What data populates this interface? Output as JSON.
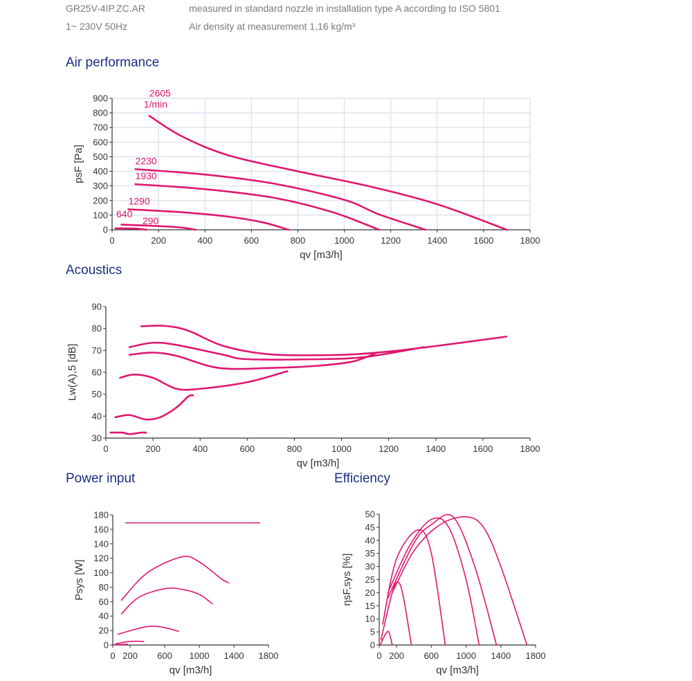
{
  "header": {
    "model": "GR25V-4IP.ZC.AR",
    "supply": "1~ 230V 50Hz",
    "measurement": "measured in standard nozzle in installation type A according to ISO 5801",
    "density": "Air density at measurement 1,16 kg/m³"
  },
  "sections": {
    "air": "Air performance",
    "acoustics": "Acoustics",
    "power": "Power input",
    "efficiency": "Efficiency"
  },
  "colors": {
    "curve": "#e0166f",
    "title": "#1a2f80",
    "grid": "#dce5ef",
    "text": "#333333"
  },
  "chart_data": [
    {
      "id": "air",
      "type": "line",
      "xlabel": "qv [m3/h]",
      "ylabel": "psF [Pa]",
      "xlim": [
        0,
        1800
      ],
      "ylim": [
        0,
        900
      ],
      "grid": true,
      "xticks": [
        0,
        200,
        400,
        600,
        800,
        1000,
        1200,
        1400,
        1600,
        1800
      ],
      "yticks": [
        0,
        100,
        200,
        300,
        400,
        500,
        600,
        700,
        800,
        900
      ],
      "unit_label": "1/min",
      "series": [
        {
          "name": "2605",
          "points": [
            [
              160,
              780
            ],
            [
              300,
              640
            ],
            [
              500,
              510
            ],
            [
              800,
              400
            ],
            [
              1100,
              300
            ],
            [
              1400,
              175
            ],
            [
              1700,
              0
            ]
          ]
        },
        {
          "name": "2230",
          "points": [
            [
              100,
              415
            ],
            [
              400,
              378
            ],
            [
              700,
              315
            ],
            [
              1000,
              205
            ],
            [
              1150,
              105
            ],
            [
              1350,
              0
            ]
          ]
        },
        {
          "name": "1930",
          "points": [
            [
              100,
              312
            ],
            [
              400,
              278
            ],
            [
              700,
              218
            ],
            [
              950,
              120
            ],
            [
              1150,
              0
            ]
          ]
        },
        {
          "name": "1290",
          "points": [
            [
              70,
              140
            ],
            [
              300,
              120
            ],
            [
              500,
              90
            ],
            [
              650,
              50
            ],
            [
              760,
              0
            ]
          ]
        },
        {
          "name": "640",
          "points": [
            [
              40,
              35
            ],
            [
              200,
              25
            ],
            [
              300,
              15
            ],
            [
              360,
              0
            ]
          ]
        },
        {
          "name": "290",
          "points": [
            [
              15,
              10
            ],
            [
              100,
              8
            ],
            [
              150,
              0
            ]
          ]
        }
      ]
    },
    {
      "id": "acoustics",
      "type": "line",
      "xlabel": "qv [m3/h]",
      "ylabel": "Lw(A),5 [dB]",
      "xlim": [
        0,
        1800
      ],
      "ylim": [
        30,
        90
      ],
      "grid": false,
      "xticks": [
        0,
        200,
        400,
        600,
        800,
        1000,
        1200,
        1400,
        1600,
        1800
      ],
      "yticks": [
        30,
        40,
        50,
        60,
        70,
        80,
        90
      ],
      "series": [
        {
          "name": "2605",
          "points": [
            [
              150,
              81
            ],
            [
              250,
              81.2
            ],
            [
              350,
              79
            ],
            [
              500,
              72
            ],
            [
              700,
              68.2
            ],
            [
              1000,
              68
            ],
            [
              1200,
              69.5
            ],
            [
              1400,
              72
            ],
            [
              1700,
              76.3
            ]
          ]
        },
        {
          "name": "2230",
          "points": [
            [
              100,
              71.5
            ],
            [
              200,
              73.5
            ],
            [
              300,
              72.5
            ],
            [
              500,
              68
            ],
            [
              600,
              66
            ],
            [
              900,
              66
            ],
            [
              1100,
              67
            ],
            [
              1350,
              71.5
            ]
          ]
        },
        {
          "name": "1930",
          "points": [
            [
              100,
              68
            ],
            [
              200,
              69
            ],
            [
              300,
              67.5
            ],
            [
              480,
              62
            ],
            [
              700,
              62
            ],
            [
              900,
              63
            ],
            [
              1050,
              65
            ],
            [
              1150,
              69
            ]
          ]
        },
        {
          "name": "1290",
          "points": [
            [
              60,
              57.5
            ],
            [
              120,
              59
            ],
            [
              200,
              57.5
            ],
            [
              300,
              52.5
            ],
            [
              400,
              52.5
            ],
            [
              600,
              55.5
            ],
            [
              770,
              60.5
            ]
          ]
        },
        {
          "name": "640",
          "points": [
            [
              40,
              39.5
            ],
            [
              100,
              40.5
            ],
            [
              170,
              38.5
            ],
            [
              230,
              39.5
            ],
            [
              300,
              44
            ],
            [
              350,
              49
            ],
            [
              370,
              49.5
            ]
          ]
        },
        {
          "name": "290",
          "points": [
            [
              20,
              32.5
            ],
            [
              70,
              32.5
            ],
            [
              100,
              31.8
            ],
            [
              150,
              32.5
            ],
            [
              170,
              32.5
            ]
          ]
        }
      ]
    },
    {
      "id": "power",
      "type": "line",
      "xlabel": "qv [m3/h]",
      "ylabel": "Psys [W]",
      "xlim": [
        0,
        1800
      ],
      "ylim": [
        0,
        180
      ],
      "grid": false,
      "xticks": [
        0,
        200,
        600,
        1000,
        1400,
        1800
      ],
      "yticks": [
        0,
        20,
        40,
        60,
        80,
        100,
        120,
        140,
        160,
        180
      ],
      "series": [
        {
          "name": "2605",
          "points": [
            [
              150,
              169
            ],
            [
              1700,
              169
            ]
          ]
        },
        {
          "name": "2230",
          "points": [
            [
              100,
              62
            ],
            [
              400,
              100
            ],
            [
              800,
              122
            ],
            [
              1000,
              115
            ],
            [
              1250,
              92
            ],
            [
              1340,
              86
            ]
          ]
        },
        {
          "name": "1930",
          "points": [
            [
              100,
              43
            ],
            [
              300,
              66
            ],
            [
              600,
              78
            ],
            [
              800,
              77
            ],
            [
              1000,
              70
            ],
            [
              1150,
              57
            ]
          ]
        },
        {
          "name": "1290",
          "points": [
            [
              60,
              15
            ],
            [
              300,
              23
            ],
            [
              450,
              26
            ],
            [
              600,
              24
            ],
            [
              760,
              19
            ]
          ]
        },
        {
          "name": "640",
          "points": [
            [
              40,
              2
            ],
            [
              200,
              5
            ],
            [
              360,
              5
            ]
          ]
        },
        {
          "name": "290",
          "points": [
            [
              20,
              0.5
            ],
            [
              170,
              1
            ]
          ]
        }
      ]
    },
    {
      "id": "efficiency",
      "type": "line",
      "xlabel": "qv [m3/h]",
      "ylabel": "ηsF,sys [%]",
      "xlim": [
        0,
        1800
      ],
      "ylim": [
        0,
        50
      ],
      "grid": false,
      "xticks": [
        0,
        200,
        600,
        1000,
        1400,
        1800
      ],
      "yticks": [
        0,
        5,
        10,
        15,
        20,
        25,
        30,
        35,
        40,
        45,
        50
      ],
      "series": [
        {
          "name": "2605",
          "points": [
            [
              150,
              20
            ],
            [
              400,
              36
            ],
            [
              700,
              46
            ],
            [
              1000,
              49
            ],
            [
              1200,
              45
            ],
            [
              1400,
              30
            ],
            [
              1700,
              0
            ]
          ]
        },
        {
          "name": "2230",
          "points": [
            [
              100,
              18
            ],
            [
              400,
              39
            ],
            [
              600,
              46
            ],
            [
              850,
              49
            ],
            [
              1100,
              30
            ],
            [
              1350,
              0
            ]
          ]
        },
        {
          "name": "1930",
          "points": [
            [
              100,
              20
            ],
            [
              350,
              38
            ],
            [
              600,
              48
            ],
            [
              800,
              45
            ],
            [
              1000,
              25
            ],
            [
              1150,
              0
            ]
          ]
        },
        {
          "name": "1290",
          "points": [
            [
              40,
              8
            ],
            [
              200,
              33
            ],
            [
              450,
              44
            ],
            [
              600,
              35
            ],
            [
              760,
              0
            ]
          ]
        },
        {
          "name": "640",
          "points": [
            [
              20,
              2
            ],
            [
              150,
              20
            ],
            [
              220,
              24
            ],
            [
              280,
              18
            ],
            [
              370,
              0
            ]
          ]
        },
        {
          "name": "290",
          "points": [
            [
              10,
              0
            ],
            [
              70,
              4
            ],
            [
              110,
              5
            ],
            [
              150,
              0
            ]
          ]
        }
      ]
    }
  ]
}
